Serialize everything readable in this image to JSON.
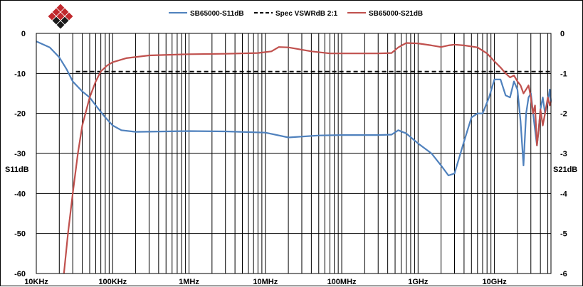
{
  "chart_data": {
    "type": "line",
    "logo": "diamond-logo",
    "x_scale": "log",
    "x_range_hz": [
      10000,
      55000000000
    ],
    "x_ticks": [
      {
        "label": "10KHz",
        "hz": 10000
      },
      {
        "label": "100KHz",
        "hz": 100000
      },
      {
        "label": "1MHz",
        "hz": 1000000
      },
      {
        "label": "10MHz",
        "hz": 10000000
      },
      {
        "label": "100MHz",
        "hz": 100000000
      },
      {
        "label": "1GHz",
        "hz": 1000000000
      },
      {
        "label": "10GHz",
        "hz": 10000000000
      }
    ],
    "y_left": {
      "label": "S11dB",
      "range": [
        -60,
        0
      ],
      "ticks": [
        "0",
        "-10",
        "-20",
        "-30",
        "-40",
        "-50",
        "-60"
      ]
    },
    "y_right": {
      "label": "S21dB",
      "range": [
        -6,
        0
      ],
      "ticks": [
        "0",
        "-1",
        "-2",
        "-3",
        "-4",
        "-5",
        "-6"
      ]
    },
    "grid": true,
    "legend_position": "top",
    "series": [
      {
        "name": "SB65000-S11dB",
        "axis": "left",
        "color": "#4f81bd",
        "dash": false,
        "points": [
          [
            10000,
            -2
          ],
          [
            15000,
            -3.5
          ],
          [
            20000,
            -6
          ],
          [
            25000,
            -9
          ],
          [
            30000,
            -12
          ],
          [
            40000,
            -14.5
          ],
          [
            50000,
            -16
          ],
          [
            60000,
            -18
          ],
          [
            80000,
            -21
          ],
          [
            100000,
            -23
          ],
          [
            130000,
            -24.2
          ],
          [
            200000,
            -24.6
          ],
          [
            500000,
            -24.5
          ],
          [
            1000000,
            -24.4
          ],
          [
            3000000,
            -24.5
          ],
          [
            10000000,
            -24.8
          ],
          [
            20000000,
            -26
          ],
          [
            50000000,
            -25.5
          ],
          [
            100000000,
            -25.4
          ],
          [
            300000000,
            -25.4
          ],
          [
            450000000,
            -25.3
          ],
          [
            550000000,
            -24.2
          ],
          [
            700000000,
            -25
          ],
          [
            1000000000,
            -27.5
          ],
          [
            1500000000,
            -30
          ],
          [
            2000000000,
            -33
          ],
          [
            2500000000,
            -35.5
          ],
          [
            3000000000,
            -35
          ],
          [
            4000000000,
            -27
          ],
          [
            5000000000,
            -21
          ],
          [
            6000000000,
            -20
          ],
          [
            7000000000,
            -20
          ],
          [
            8500000000,
            -16
          ],
          [
            10000000000,
            -11.5
          ],
          [
            12000000000,
            -11.5
          ],
          [
            14000000000,
            -15.5
          ],
          [
            16000000000,
            -16
          ],
          [
            18000000000,
            -12
          ],
          [
            20000000000,
            -14
          ],
          [
            22000000000,
            -22
          ],
          [
            24000000000,
            -33
          ],
          [
            26000000000,
            -20
          ],
          [
            28000000000,
            -16
          ],
          [
            30000000000,
            -15
          ],
          [
            33000000000,
            -22
          ],
          [
            36000000000,
            -28
          ],
          [
            38000000000,
            -24
          ],
          [
            40000000000,
            -19
          ],
          [
            43000000000,
            -16
          ],
          [
            46000000000,
            -20
          ],
          [
            50000000000,
            -17
          ],
          [
            53000000000,
            -14
          ],
          [
            55000000000,
            -17
          ]
        ]
      },
      {
        "name": "Spec VSWRdB 2:1",
        "axis": "left",
        "color": "#000000",
        "dash": true,
        "points": [
          [
            33000,
            -9.54
          ],
          [
            55000000000,
            -9.54
          ]
        ]
      },
      {
        "name": "SB65000-S21dB",
        "axis": "right",
        "color": "#c0504d",
        "dash": false,
        "points": [
          [
            23000,
            -6
          ],
          [
            26000,
            -5
          ],
          [
            30000,
            -4
          ],
          [
            35000,
            -3
          ],
          [
            40000,
            -2.3
          ],
          [
            50000,
            -1.6
          ],
          [
            60000,
            -1.2
          ],
          [
            70000,
            -0.95
          ],
          [
            85000,
            -0.8
          ],
          [
            100000,
            -0.72
          ],
          [
            150000,
            -0.62
          ],
          [
            300000,
            -0.55
          ],
          [
            1000000,
            -0.52
          ],
          [
            3000000,
            -0.51
          ],
          [
            8000000,
            -0.49
          ],
          [
            12000000,
            -0.45
          ],
          [
            15000000,
            -0.34
          ],
          [
            20000000,
            -0.35
          ],
          [
            40000000,
            -0.45
          ],
          [
            70000000,
            -0.5
          ],
          [
            150000000,
            -0.5
          ],
          [
            300000000,
            -0.5
          ],
          [
            450000000,
            -0.49
          ],
          [
            550000000,
            -0.35
          ],
          [
            700000000,
            -0.24
          ],
          [
            1000000000,
            -0.25
          ],
          [
            1500000000,
            -0.3
          ],
          [
            2000000000,
            -0.34
          ],
          [
            2500000000,
            -0.3
          ],
          [
            3000000000,
            -0.28
          ],
          [
            4000000000,
            -0.3
          ],
          [
            6000000000,
            -0.35
          ],
          [
            8000000000,
            -0.5
          ],
          [
            10000000000,
            -0.7
          ],
          [
            12000000000,
            -0.85
          ],
          [
            14000000000,
            -1.0
          ],
          [
            16000000000,
            -1.1
          ],
          [
            18000000000,
            -1.05
          ],
          [
            20000000000,
            -1.2
          ],
          [
            22000000000,
            -1.3
          ],
          [
            24000000000,
            -1.5
          ],
          [
            26000000000,
            -1.4
          ],
          [
            28000000000,
            -1.3
          ],
          [
            30000000000,
            -1.6
          ],
          [
            32000000000,
            -2.0
          ],
          [
            34000000000,
            -1.8
          ],
          [
            36000000000,
            -2.8
          ],
          [
            38000000000,
            -2.4
          ],
          [
            40000000000,
            -1.9
          ],
          [
            43000000000,
            -2.3
          ],
          [
            46000000000,
            -2.0
          ],
          [
            50000000000,
            -1.6
          ],
          [
            53000000000,
            -1.8
          ],
          [
            55000000000,
            -1.7
          ]
        ]
      }
    ]
  }
}
